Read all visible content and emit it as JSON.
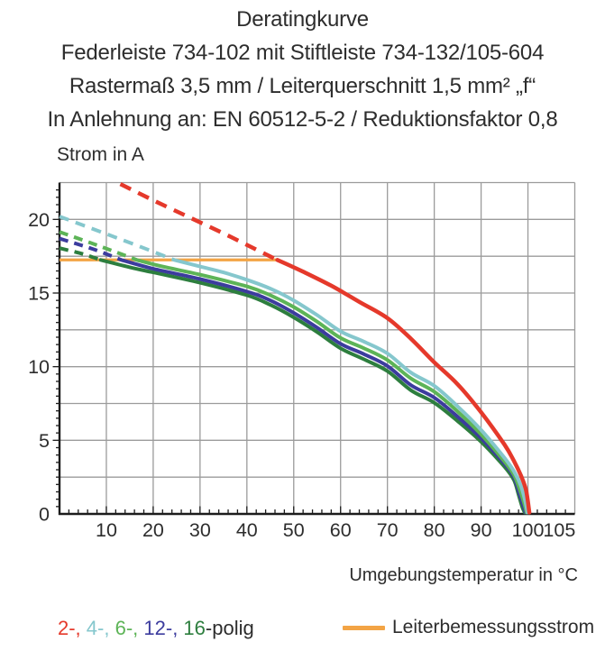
{
  "title": {
    "lines": [
      "Deratingkurve",
      "Federleiste 734-102 mit Stiftleiste 734-132/105-604",
      "Rastermaß 3,5 mm / Leiterquerschnitt 1,5 mm² „f“",
      "In Anlehnung an: EN 60512-5-2 / Reduktionsfaktor 0,8"
    ]
  },
  "axes": {
    "y_label": "Strom in A",
    "x_label": "Umgebungstemperatur in °C"
  },
  "legend": {
    "poles": [
      {
        "text": "2-,",
        "color": "#e5392b"
      },
      {
        "text": " 4-,",
        "color": "#85c7cd"
      },
      {
        "text": " 6-,",
        "color": "#5db457"
      },
      {
        "text": " 12-,",
        "color": "#3c3c9e"
      },
      {
        "text": " 16",
        "color": "#2d7e3e"
      }
    ],
    "poles_suffix": "-polig",
    "rated_label": "Leiterbemessungsstrom",
    "rated_color": "#f3a445"
  },
  "chart_data": {
    "type": "line",
    "title": "Deratingkurve",
    "xlabel": "Umgebungstemperatur in °C",
    "ylabel": "Strom in A",
    "xlim": [
      0,
      110
    ],
    "ylim": [
      0,
      22.5
    ],
    "x_major_grid": 10,
    "y_major_grid": 2.5,
    "x_minor_tick": 2,
    "y_minor_tick": 0.5,
    "grid_on": true,
    "grid_color": "#9b9b9b",
    "axis_color": "#1c1c1c",
    "text_color": "#2d2d2d",
    "xticks": [
      {
        "v": 10,
        "label": "10"
      },
      {
        "v": 20,
        "label": "20"
      },
      {
        "v": 30,
        "label": "30"
      },
      {
        "v": 40,
        "label": "40"
      },
      {
        "v": 50,
        "label": "50"
      },
      {
        "v": 60,
        "label": "60"
      },
      {
        "v": 70,
        "label": "70"
      },
      {
        "v": 80,
        "label": "80"
      },
      {
        "v": 90,
        "label": "90"
      },
      {
        "v": 100,
        "label": "100"
      },
      {
        "v": 105,
        "label": "105",
        "lx": 106.7
      }
    ],
    "yticks": [
      {
        "v": 0,
        "label": "0"
      },
      {
        "v": 5,
        "label": "5"
      },
      {
        "v": 10,
        "label": "10"
      },
      {
        "v": 15,
        "label": "15"
      },
      {
        "v": 20,
        "label": "20"
      }
    ],
    "rated_line": {
      "name": "Leiterbemessungsstrom",
      "value": 17.25,
      "x_start": 0,
      "x_end": 46.5,
      "color": "#f3a445"
    },
    "series": [
      {
        "name": "2-polig",
        "color": "#e5392b",
        "width": 4.5,
        "dash": "13 9",
        "dashed": [
          [
            13,
            22.4
          ],
          [
            20,
            21.3
          ],
          [
            28,
            20.1
          ],
          [
            36,
            18.9
          ],
          [
            42,
            17.95
          ],
          [
            46.5,
            17.25
          ]
        ],
        "solid": [
          [
            46.5,
            17.25
          ],
          [
            52,
            16.45
          ],
          [
            58,
            15.5
          ],
          [
            64,
            14.4
          ],
          [
            70,
            13.3
          ],
          [
            75,
            11.9
          ],
          [
            80,
            10.3
          ],
          [
            85,
            8.8
          ],
          [
            90,
            6.9
          ],
          [
            95,
            4.7
          ],
          [
            97,
            3.6
          ],
          [
            98.5,
            2.6
          ],
          [
            99.6,
            1.6
          ],
          [
            100.3,
            0.1
          ]
        ]
      },
      {
        "name": "4-polig",
        "color": "#85c7cd",
        "width": 4,
        "dash": "11 8",
        "dashed": [
          [
            0,
            20.2
          ],
          [
            8,
            19.25
          ],
          [
            16,
            18.3
          ],
          [
            24.5,
            17.25
          ]
        ],
        "solid": [
          [
            24.5,
            17.25
          ],
          [
            30,
            16.8
          ],
          [
            35,
            16.4
          ],
          [
            40,
            15.9
          ],
          [
            45,
            15.3
          ],
          [
            50,
            14.5
          ],
          [
            55,
            13.5
          ],
          [
            60,
            12.4
          ],
          [
            65,
            11.7
          ],
          [
            70,
            10.9
          ],
          [
            75,
            9.6
          ],
          [
            80,
            8.7
          ],
          [
            85,
            7.3
          ],
          [
            90,
            5.7
          ],
          [
            95,
            3.8
          ],
          [
            97,
            2.9
          ],
          [
            98.5,
            1.9
          ],
          [
            99.4,
            0.9
          ],
          [
            99.9,
            0.1
          ]
        ]
      },
      {
        "name": "6-polig",
        "color": "#5db457",
        "width": 4,
        "dash": "10 7",
        "dashed": [
          [
            0,
            19.15
          ],
          [
            8,
            18.25
          ],
          [
            16.5,
            17.25
          ]
        ],
        "solid": [
          [
            16.5,
            17.25
          ],
          [
            22,
            16.8
          ],
          [
            30,
            16.25
          ],
          [
            40,
            15.45
          ],
          [
            45,
            14.85
          ],
          [
            50,
            14.05
          ],
          [
            55,
            13.05
          ],
          [
            60,
            11.95
          ],
          [
            65,
            11.25
          ],
          [
            70,
            10.45
          ],
          [
            75,
            9.2
          ],
          [
            80,
            8.3
          ],
          [
            85,
            6.95
          ],
          [
            90,
            5.4
          ],
          [
            95,
            3.55
          ],
          [
            97,
            2.65
          ],
          [
            98.3,
            1.6
          ],
          [
            99.2,
            0.7
          ],
          [
            99.7,
            0.1
          ]
        ]
      },
      {
        "name": "12-polig",
        "color": "#3c3c9e",
        "width": 4,
        "dash": "10 7",
        "dashed": [
          [
            0,
            18.7
          ],
          [
            7,
            18.0
          ],
          [
            13.2,
            17.25
          ]
        ],
        "solid": [
          [
            13.2,
            17.25
          ],
          [
            20,
            16.65
          ],
          [
            30,
            15.95
          ],
          [
            40,
            15.1
          ],
          [
            45,
            14.5
          ],
          [
            50,
            13.65
          ],
          [
            55,
            12.65
          ],
          [
            60,
            11.55
          ],
          [
            65,
            10.85
          ],
          [
            70,
            10.05
          ],
          [
            75,
            8.75
          ],
          [
            80,
            7.9
          ],
          [
            85,
            6.6
          ],
          [
            90,
            5.15
          ],
          [
            95,
            3.4
          ],
          [
            97,
            2.5
          ],
          [
            98.1,
            1.45
          ],
          [
            99.0,
            0.55
          ],
          [
            99.5,
            0.1
          ]
        ]
      },
      {
        "name": "16-polig",
        "color": "#2d7e3e",
        "width": 4,
        "dash": "10 7",
        "dashed": [
          [
            0,
            18.05
          ],
          [
            5,
            17.65
          ],
          [
            8.8,
            17.25
          ]
        ],
        "solid": [
          [
            8.8,
            17.25
          ],
          [
            15,
            16.75
          ],
          [
            20,
            16.4
          ],
          [
            30,
            15.7
          ],
          [
            40,
            14.85
          ],
          [
            45,
            14.2
          ],
          [
            50,
            13.35
          ],
          [
            55,
            12.35
          ],
          [
            60,
            11.25
          ],
          [
            65,
            10.5
          ],
          [
            70,
            9.7
          ],
          [
            75,
            8.4
          ],
          [
            80,
            7.55
          ],
          [
            85,
            6.3
          ],
          [
            90,
            4.9
          ],
          [
            95,
            3.2
          ],
          [
            97,
            2.3
          ],
          [
            98,
            1.3
          ],
          [
            98.8,
            0.45
          ],
          [
            99.3,
            0.1
          ]
        ]
      }
    ]
  }
}
